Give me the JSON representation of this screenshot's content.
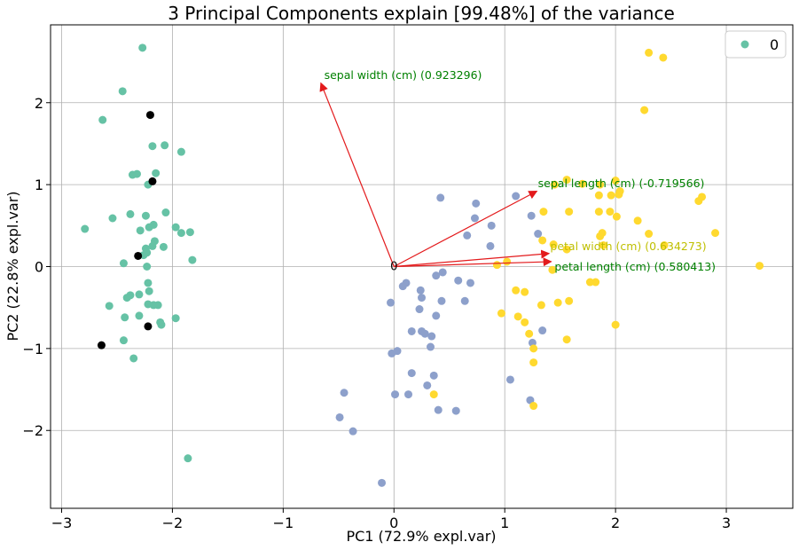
{
  "chart_data": {
    "type": "scatter",
    "title": "3 Principal Components explain [99.48%] of the variance",
    "xlabel": "PC1 (72.9% expl.var)",
    "ylabel": "PC2 (22.8% expl.var)",
    "xlim": [
      -3.1,
      3.6
    ],
    "ylim": [
      -2.95,
      2.95
    ],
    "xticks": [
      -3,
      -2,
      -1,
      0,
      1,
      2,
      3
    ],
    "yticks": [
      -2,
      -1,
      0,
      1,
      2
    ],
    "grid": true,
    "legend": {
      "placement": "top-right",
      "entries": [
        {
          "label": "0",
          "color": "#66c2a5"
        }
      ]
    },
    "colors": {
      "cluster_a": "#66c2a5",
      "cluster_b": "#8da0cb",
      "cluster_c": "#ffd92f",
      "highlight": "#000000",
      "arrow": "#e31a1c",
      "label_green": "#008000",
      "label_yellow": "#bfbf00"
    },
    "origin_label": "0",
    "series": [
      {
        "color": "#66c2a5",
        "points": [
          [
            -2.27,
            2.67
          ],
          [
            -2.45,
            2.14
          ],
          [
            -2.63,
            1.79
          ],
          [
            -2.18,
            1.47
          ],
          [
            -2.07,
            1.48
          ],
          [
            -1.92,
            1.4
          ],
          [
            -2.36,
            1.12
          ],
          [
            -2.32,
            1.13
          ],
          [
            -2.15,
            1.14
          ],
          [
            -2.22,
            1.0
          ],
          [
            -2.06,
            0.66
          ],
          [
            -1.97,
            0.48
          ],
          [
            -1.92,
            0.41
          ],
          [
            -1.84,
            0.42
          ],
          [
            -2.24,
            0.62
          ],
          [
            -2.38,
            0.64
          ],
          [
            -2.54,
            0.59
          ],
          [
            -2.79,
            0.46
          ],
          [
            -2.29,
            0.44
          ],
          [
            -2.21,
            0.48
          ],
          [
            -2.17,
            0.51
          ],
          [
            -2.24,
            0.22
          ],
          [
            -2.16,
            0.31
          ],
          [
            -2.18,
            0.25
          ],
          [
            -2.08,
            0.24
          ],
          [
            -2.23,
            0.17
          ],
          [
            -2.26,
            0.14
          ],
          [
            -2.44,
            0.04
          ],
          [
            -2.23,
            0.0
          ],
          [
            -1.82,
            0.08
          ],
          [
            -2.22,
            -0.2
          ],
          [
            -2.21,
            -0.3
          ],
          [
            -2.38,
            -0.35
          ],
          [
            -2.41,
            -0.38
          ],
          [
            -2.57,
            -0.48
          ],
          [
            -2.22,
            -0.46
          ],
          [
            -2.17,
            -0.47
          ],
          [
            -2.13,
            -0.47
          ],
          [
            -2.3,
            -0.6
          ],
          [
            -2.43,
            -0.62
          ],
          [
            -2.3,
            -0.34
          ],
          [
            -1.97,
            -0.63
          ],
          [
            -2.11,
            -0.68
          ],
          [
            -2.1,
            -0.71
          ],
          [
            -2.44,
            -0.9
          ],
          [
            -2.35,
            -1.12
          ],
          [
            -1.86,
            -2.34
          ]
        ]
      },
      {
        "color": "#8da0cb",
        "points": [
          [
            0.42,
            0.84
          ],
          [
            0.74,
            0.77
          ],
          [
            1.1,
            0.86
          ],
          [
            1.24,
            0.62
          ],
          [
            0.73,
            0.59
          ],
          [
            0.88,
            0.5
          ],
          [
            1.3,
            0.4
          ],
          [
            0.66,
            0.38
          ],
          [
            0.87,
            0.25
          ],
          [
            0.44,
            -0.07
          ],
          [
            0.38,
            -0.11
          ],
          [
            0.58,
            -0.17
          ],
          [
            0.69,
            -0.2
          ],
          [
            0.11,
            -0.2
          ],
          [
            0.08,
            -0.24
          ],
          [
            0.24,
            -0.29
          ],
          [
            0.25,
            -0.38
          ],
          [
            0.43,
            -0.42
          ],
          [
            0.64,
            -0.42
          ],
          [
            -0.03,
            -0.44
          ],
          [
            0.23,
            -0.52
          ],
          [
            0.38,
            -0.6
          ],
          [
            0.16,
            -0.79
          ],
          [
            0.25,
            -0.79
          ],
          [
            0.28,
            -0.82
          ],
          [
            0.34,
            -0.85
          ],
          [
            1.34,
            -0.78
          ],
          [
            1.25,
            -0.93
          ],
          [
            0.33,
            -0.98
          ],
          [
            0.03,
            -1.03
          ],
          [
            -0.02,
            -1.06
          ],
          [
            0.16,
            -1.3
          ],
          [
            0.36,
            -1.33
          ],
          [
            1.05,
            -1.38
          ],
          [
            0.3,
            -1.45
          ],
          [
            -0.45,
            -1.54
          ],
          [
            0.01,
            -1.56
          ],
          [
            0.13,
            -1.56
          ],
          [
            1.23,
            -1.63
          ],
          [
            0.4,
            -1.75
          ],
          [
            0.56,
            -1.76
          ],
          [
            -0.49,
            -1.84
          ],
          [
            -0.37,
            -2.01
          ],
          [
            -0.11,
            -2.64
          ]
        ]
      },
      {
        "color": "#ffd92f",
        "points": [
          [
            2.3,
            2.61
          ],
          [
            2.43,
            2.55
          ],
          [
            2.26,
            1.91
          ],
          [
            1.56,
            1.06
          ],
          [
            1.7,
            1.01
          ],
          [
            1.45,
            1.0
          ],
          [
            1.86,
            1.0
          ],
          [
            2.0,
            1.05
          ],
          [
            2.04,
            0.92
          ],
          [
            2.03,
            0.88
          ],
          [
            1.85,
            0.87
          ],
          [
            1.96,
            0.87
          ],
          [
            2.78,
            0.85
          ],
          [
            2.75,
            0.8
          ],
          [
            1.35,
            0.67
          ],
          [
            1.58,
            0.67
          ],
          [
            1.85,
            0.67
          ],
          [
            1.95,
            0.67
          ],
          [
            2.01,
            0.61
          ],
          [
            2.2,
            0.56
          ],
          [
            2.44,
            0.26
          ],
          [
            1.88,
            0.41
          ],
          [
            1.86,
            0.37
          ],
          [
            2.3,
            0.4
          ],
          [
            2.9,
            0.41
          ],
          [
            1.34,
            0.32
          ],
          [
            1.44,
            0.27
          ],
          [
            1.89,
            0.26
          ],
          [
            1.56,
            0.21
          ],
          [
            3.3,
            0.01
          ],
          [
            0.93,
            0.02
          ],
          [
            1.02,
            0.06
          ],
          [
            1.43,
            -0.04
          ],
          [
            1.82,
            -0.19
          ],
          [
            1.77,
            -0.19
          ],
          [
            1.1,
            -0.29
          ],
          [
            1.18,
            -0.31
          ],
          [
            1.58,
            -0.42
          ],
          [
            1.48,
            -0.44
          ],
          [
            1.33,
            -0.47
          ],
          [
            0.97,
            -0.57
          ],
          [
            1.12,
            -0.61
          ],
          [
            1.18,
            -0.68
          ],
          [
            2.0,
            -0.71
          ],
          [
            1.22,
            -0.82
          ],
          [
            1.56,
            -0.89
          ],
          [
            1.26,
            -1.0
          ],
          [
            1.26,
            -1.17
          ],
          [
            0.36,
            -1.56
          ],
          [
            1.26,
            -1.7
          ]
        ]
      },
      {
        "color": "#000000",
        "points": [
          [
            -2.2,
            1.85
          ],
          [
            -2.18,
            1.04
          ],
          [
            -2.31,
            0.13
          ],
          [
            -2.22,
            -0.73
          ],
          [
            -2.64,
            -0.96
          ]
        ]
      }
    ],
    "loadings": [
      {
        "label": "sepal width (cm) (0.923296)",
        "x": -0.66,
        "y": 2.24,
        "tx": -0.63,
        "ty": 2.29,
        "label_color": "#008000"
      },
      {
        "label": "sepal length (cm) (-0.719566)",
        "x": 1.29,
        "y": 0.92,
        "tx": 1.3,
        "ty": 0.97,
        "label_color": "#008000"
      },
      {
        "label": "petal width (cm) (0.634273)",
        "x": 1.4,
        "y": 0.16,
        "tx": 1.41,
        "ty": 0.2,
        "label_color": "#bfbf00"
      },
      {
        "label": "petal length (cm) (0.580413)",
        "x": 1.42,
        "y": 0.06,
        "tx": 1.45,
        "ty": -0.05,
        "label_color": "#008000"
      }
    ]
  }
}
